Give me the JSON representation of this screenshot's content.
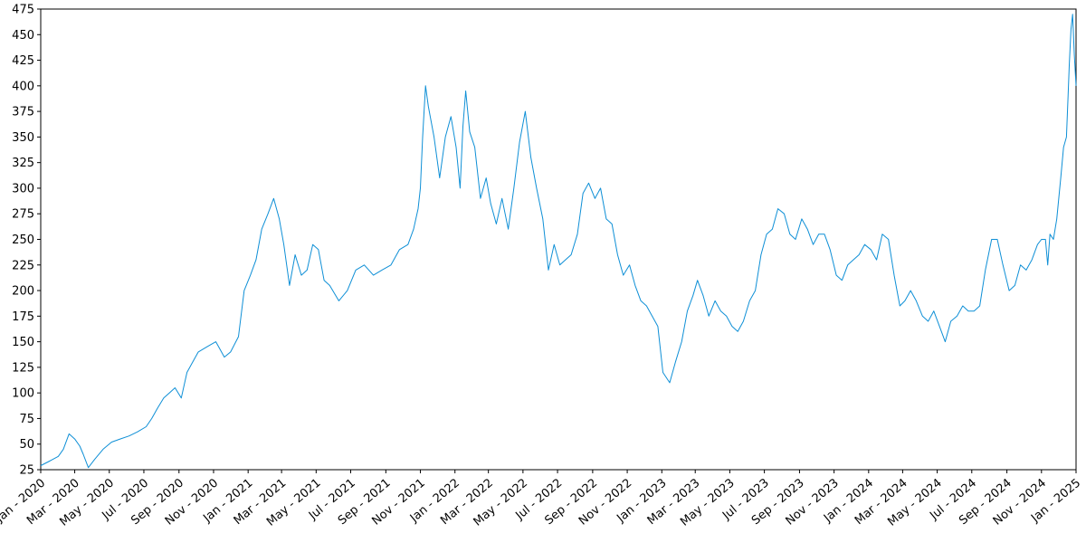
{
  "chart_data": {
    "type": "line",
    "title": "",
    "xlabel": "",
    "ylabel": "",
    "grid": false,
    "colors": {
      "line": "#0e8fd6",
      "axis": "#000000"
    },
    "xlim": [
      "2020-01-01",
      "2025-01-01"
    ],
    "ylim": [
      25,
      475
    ],
    "y_ticks": [
      25,
      50,
      75,
      100,
      125,
      150,
      175,
      200,
      225,
      250,
      275,
      300,
      325,
      350,
      375,
      400,
      425,
      450,
      475
    ],
    "x_ticks": [
      {
        "date": "2020-01-01",
        "label": "Jan - 2020"
      },
      {
        "date": "2020-03-01",
        "label": "Mar - 2020"
      },
      {
        "date": "2020-05-01",
        "label": "May - 2020"
      },
      {
        "date": "2020-07-01",
        "label": "Jul - 2020"
      },
      {
        "date": "2020-09-01",
        "label": "Sep - 2020"
      },
      {
        "date": "2020-11-01",
        "label": "Nov - 2020"
      },
      {
        "date": "2021-01-01",
        "label": "Jan - 2021"
      },
      {
        "date": "2021-03-01",
        "label": "Mar - 2021"
      },
      {
        "date": "2021-05-01",
        "label": "May - 2021"
      },
      {
        "date": "2021-07-01",
        "label": "Jul - 2021"
      },
      {
        "date": "2021-09-01",
        "label": "Sep - 2021"
      },
      {
        "date": "2021-11-01",
        "label": "Nov - 2021"
      },
      {
        "date": "2022-01-01",
        "label": "Jan - 2022"
      },
      {
        "date": "2022-03-01",
        "label": "Mar - 2022"
      },
      {
        "date": "2022-05-01",
        "label": "May - 2022"
      },
      {
        "date": "2022-07-01",
        "label": "Jul - 2022"
      },
      {
        "date": "2022-09-01",
        "label": "Sep - 2022"
      },
      {
        "date": "2022-11-01",
        "label": "Nov - 2022"
      },
      {
        "date": "2023-01-01",
        "label": "Jan - 2023"
      },
      {
        "date": "2023-03-01",
        "label": "Mar - 2023"
      },
      {
        "date": "2023-05-01",
        "label": "May - 2023"
      },
      {
        "date": "2023-07-01",
        "label": "Jul - 2023"
      },
      {
        "date": "2023-09-01",
        "label": "Sep - 2023"
      },
      {
        "date": "2023-11-01",
        "label": "Nov - 2023"
      },
      {
        "date": "2024-01-01",
        "label": "Jan - 2024"
      },
      {
        "date": "2024-03-01",
        "label": "Mar - 2024"
      },
      {
        "date": "2024-05-01",
        "label": "May - 2024"
      },
      {
        "date": "2024-07-01",
        "label": "Jul - 2024"
      },
      {
        "date": "2024-09-01",
        "label": "Sep - 2024"
      },
      {
        "date": "2024-11-01",
        "label": "Nov - 2024"
      },
      {
        "date": "2025-01-01",
        "label": "Jan - 2025"
      }
    ],
    "series": [
      {
        "x": [
          "2020-01-01",
          "2020-01-15",
          "2020-02-01",
          "2020-02-10",
          "2020-02-20",
          "2020-03-01",
          "2020-03-10",
          "2020-03-16",
          "2020-03-25",
          "2020-04-05",
          "2020-04-20",
          "2020-05-05",
          "2020-05-20",
          "2020-06-05",
          "2020-06-20",
          "2020-07-05",
          "2020-07-15",
          "2020-07-25",
          "2020-08-05",
          "2020-08-15",
          "2020-08-25",
          "2020-09-05",
          "2020-09-15",
          "2020-09-25",
          "2020-10-05",
          "2020-10-20",
          "2020-11-05",
          "2020-11-20",
          "2020-12-01",
          "2020-12-15",
          "2020-12-25",
          "2021-01-05",
          "2021-01-15",
          "2021-01-25",
          "2021-02-05",
          "2021-02-15",
          "2021-02-25",
          "2021-03-05",
          "2021-03-15",
          "2021-03-25",
          "2021-04-05",
          "2021-04-15",
          "2021-04-25",
          "2021-05-05",
          "2021-05-15",
          "2021-05-25",
          "2021-06-10",
          "2021-06-25",
          "2021-07-10",
          "2021-07-25",
          "2021-08-10",
          "2021-08-25",
          "2021-09-10",
          "2021-09-25",
          "2021-10-10",
          "2021-10-20",
          "2021-10-28",
          "2021-11-01",
          "2021-11-05",
          "2021-11-10",
          "2021-11-15",
          "2021-11-25",
          "2021-12-05",
          "2021-12-15",
          "2021-12-25",
          "2022-01-03",
          "2022-01-10",
          "2022-01-15",
          "2022-01-20",
          "2022-01-27",
          "2022-02-05",
          "2022-02-15",
          "2022-02-25",
          "2022-03-05",
          "2022-03-15",
          "2022-03-25",
          "2022-04-05",
          "2022-04-15",
          "2022-04-25",
          "2022-05-05",
          "2022-05-15",
          "2022-05-25",
          "2022-06-05",
          "2022-06-15",
          "2022-06-25",
          "2022-07-05",
          "2022-07-15",
          "2022-07-25",
          "2022-08-05",
          "2022-08-15",
          "2022-08-25",
          "2022-09-05",
          "2022-09-15",
          "2022-09-25",
          "2022-10-05",
          "2022-10-15",
          "2022-10-25",
          "2022-11-05",
          "2022-11-15",
          "2022-11-25",
          "2022-12-05",
          "2022-12-15",
          "2022-12-25",
          "2023-01-03",
          "2023-01-15",
          "2023-01-25",
          "2023-02-05",
          "2023-02-15",
          "2023-02-25",
          "2023-03-05",
          "2023-03-15",
          "2023-03-25",
          "2023-04-05",
          "2023-04-15",
          "2023-04-25",
          "2023-05-05",
          "2023-05-15",
          "2023-05-25",
          "2023-06-05",
          "2023-06-15",
          "2023-06-25",
          "2023-07-05",
          "2023-07-15",
          "2023-07-25",
          "2023-08-05",
          "2023-08-15",
          "2023-08-25",
          "2023-09-05",
          "2023-09-15",
          "2023-09-25",
          "2023-10-05",
          "2023-10-15",
          "2023-10-25",
          "2023-11-05",
          "2023-11-15",
          "2023-11-25",
          "2023-12-05",
          "2023-12-15",
          "2023-12-25",
          "2024-01-05",
          "2024-01-15",
          "2024-01-25",
          "2024-02-05",
          "2024-02-15",
          "2024-02-25",
          "2024-03-05",
          "2024-03-15",
          "2024-03-25",
          "2024-04-05",
          "2024-04-15",
          "2024-04-25",
          "2024-05-05",
          "2024-05-15",
          "2024-05-25",
          "2024-06-05",
          "2024-06-15",
          "2024-06-25",
          "2024-07-05",
          "2024-07-15",
          "2024-07-25",
          "2024-08-05",
          "2024-08-15",
          "2024-08-25",
          "2024-09-05",
          "2024-09-15",
          "2024-09-25",
          "2024-10-05",
          "2024-10-15",
          "2024-10-25",
          "2024-11-01",
          "2024-11-08",
          "2024-11-12",
          "2024-11-16",
          "2024-11-22",
          "2024-11-28",
          "2024-12-05",
          "2024-12-10",
          "2024-12-15",
          "2024-12-18",
          "2024-12-20",
          "2024-12-23",
          "2024-12-26",
          "2024-12-29",
          "2025-01-01"
        ],
        "y": [
          29,
          33,
          38,
          45,
          60,
          55,
          48,
          40,
          27,
          35,
          45,
          52,
          55,
          58,
          62,
          67,
          75,
          85,
          95,
          100,
          105,
          95,
          120,
          130,
          140,
          145,
          150,
          135,
          140,
          155,
          200,
          215,
          230,
          260,
          275,
          290,
          270,
          245,
          205,
          235,
          215,
          220,
          245,
          240,
          210,
          205,
          190,
          200,
          220,
          225,
          215,
          220,
          225,
          240,
          245,
          260,
          280,
          300,
          350,
          400,
          380,
          350,
          310,
          350,
          370,
          340,
          300,
          360,
          395,
          355,
          340,
          290,
          310,
          285,
          265,
          290,
          260,
          300,
          345,
          375,
          330,
          300,
          270,
          220,
          245,
          225,
          230,
          235,
          255,
          295,
          305,
          290,
          300,
          270,
          265,
          235,
          215,
          225,
          205,
          190,
          185,
          175,
          165,
          120,
          110,
          130,
          150,
          180,
          195,
          210,
          195,
          175,
          190,
          180,
          175,
          165,
          160,
          170,
          190,
          200,
          235,
          255,
          260,
          280,
          275,
          255,
          250,
          270,
          260,
          245,
          255,
          255,
          240,
          215,
          210,
          225,
          230,
          235,
          245,
          240,
          230,
          255,
          250,
          215,
          185,
          190,
          200,
          190,
          175,
          170,
          180,
          165,
          150,
          170,
          175,
          185,
          180,
          180,
          185,
          220,
          250,
          250,
          225,
          200,
          205,
          225,
          220,
          230,
          245,
          250,
          250,
          225,
          255,
          250,
          270,
          310,
          340,
          350,
          390,
          420,
          455,
          470,
          430,
          400
        ]
      }
    ]
  }
}
